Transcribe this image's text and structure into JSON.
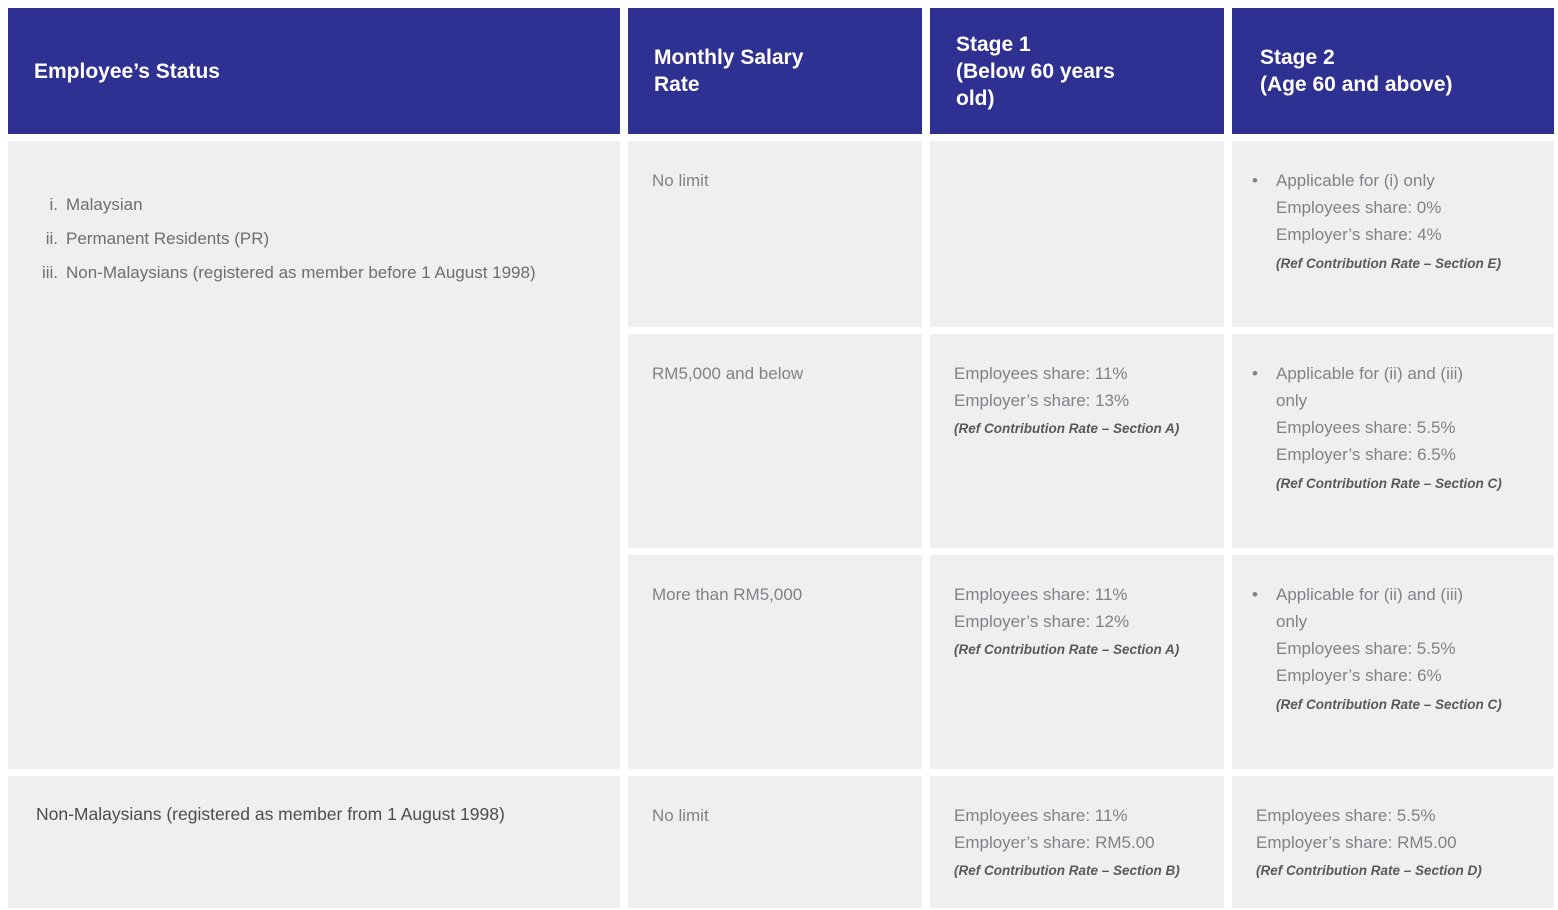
{
  "palette": {
    "header_bg": "#2E3192",
    "header_text": "#FFFFFF",
    "cell_bg": "#EFEFEF",
    "body_text": "#808285",
    "status_list_text": "#6D6E71",
    "bottom_status_text": "#4D4D4F",
    "ref_note_text": "#58595B",
    "page_bg": "#FFFFFF"
  },
  "bullet_glyph": "•",
  "header": {
    "employee_status": "Employee’s Status",
    "monthly_salary_rate": "Monthly Salary\nRate",
    "stage1": "Stage 1\n(Below 60 years\nold)",
    "stage2": "Stage 2\n(Age 60 and above)"
  },
  "status_group": {
    "items": [
      {
        "num": "i.",
        "text": "Malaysian"
      },
      {
        "num": "ii.",
        "text": "Permanent Residents (PR)"
      },
      {
        "num": "iii.",
        "text": "Non-Malaysians (registered as member before 1 August 1998)"
      }
    ]
  },
  "rows": [
    {
      "salary": "No limit",
      "stage1": {
        "body": "",
        "ref": ""
      },
      "stage2": {
        "body": "Applicable for (i) only\nEmployees share: 0%\nEmployer’s share: 4%",
        "ref": "(Ref Contribution Rate – Section E)"
      }
    },
    {
      "salary": "RM5,000 and below",
      "stage1": {
        "body": "Employees share: 11%\nEmployer’s share: 13%",
        "ref": "(Ref Contribution Rate – Section A)"
      },
      "stage2": {
        "body": "Applicable for (ii) and (iii)\nonly\nEmployees share: 5.5%\nEmployer’s share: 6.5%",
        "ref": "(Ref Contribution Rate – Section C)"
      }
    },
    {
      "salary": "More than RM5,000",
      "stage1": {
        "body": "Employees share: 11%\nEmployer’s share: 12%",
        "ref": "(Ref Contribution Rate – Section A)"
      },
      "stage2": {
        "body": "Applicable for (ii) and (iii)\nonly\nEmployees share: 5.5%\nEmployer’s share: 6%",
        "ref": "(Ref Contribution Rate – Section C)"
      }
    }
  ],
  "bottom_row": {
    "status": "Non-Malaysians (registered as member from 1 August 1998)",
    "salary": "No limit",
    "stage1": {
      "body": "Employees share: 11%\nEmployer’s share: RM5.00",
      "ref": "(Ref Contribution Rate – Section B)"
    },
    "stage2": {
      "body": "Employees share: 5.5%\nEmployer’s share: RM5.00",
      "ref": "(Ref Contribution Rate – Section D)"
    }
  }
}
